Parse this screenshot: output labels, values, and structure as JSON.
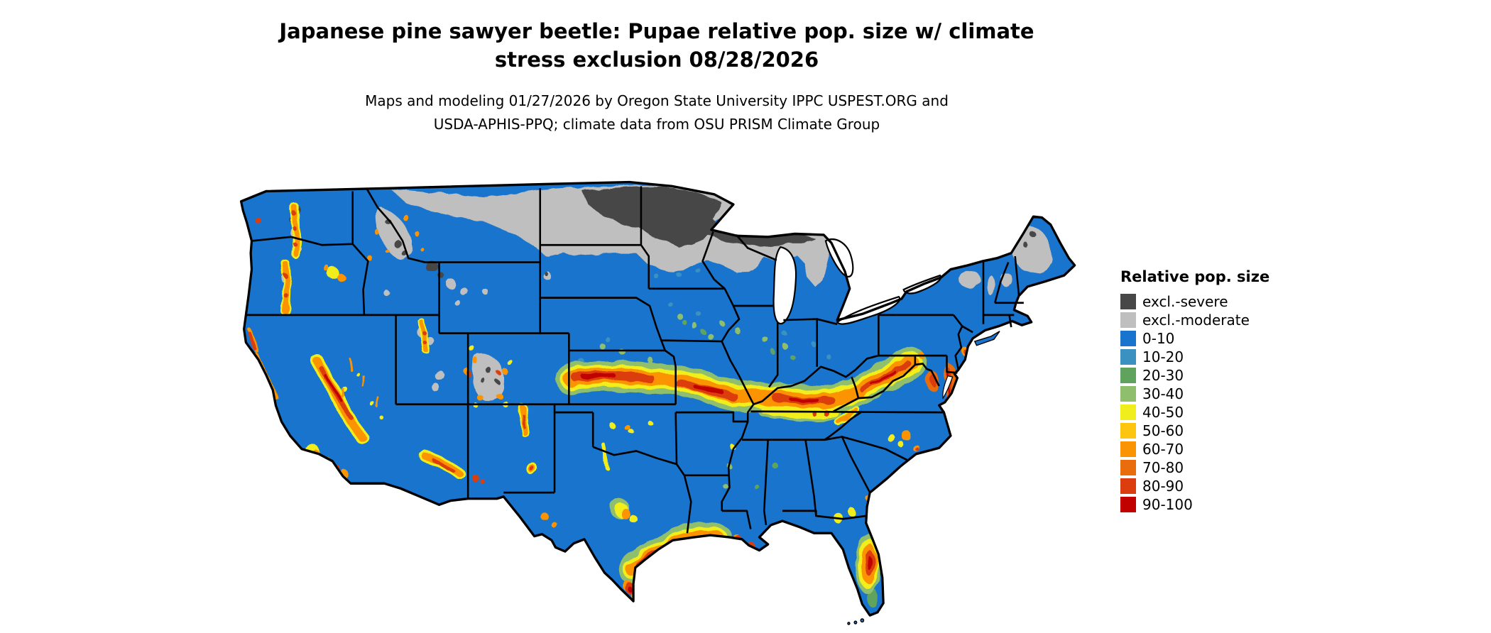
{
  "title": {
    "line1": "Japanese pine sawyer beetle: Pupae relative pop. size w/ climate",
    "line2": "stress exclusion 08/28/2026"
  },
  "subtitle": {
    "line1": "Maps and modeling 01/27/2026 by Oregon State University IPPC USPEST.ORG and",
    "line2": "USDA-APHIS-PPQ; climate data from OSU PRISM Climate Group"
  },
  "map": {
    "land_base_color": "#1874cd",
    "water_color": "#ffffff",
    "border_color": "#000000"
  },
  "legend": {
    "title": "Relative pop. size",
    "items": [
      {
        "label": "excl.-severe",
        "color": "#474747"
      },
      {
        "label": "excl.-moderate",
        "color": "#bfbfbf"
      },
      {
        "label": "0-10",
        "color": "#1874cd"
      },
      {
        "label": "10-20",
        "color": "#3b92c0"
      },
      {
        "label": "20-30",
        "color": "#5fa35f"
      },
      {
        "label": "30-40",
        "color": "#8fbe6d"
      },
      {
        "label": "40-50",
        "color": "#f1ee1e"
      },
      {
        "label": "50-60",
        "color": "#fdc50f"
      },
      {
        "label": "60-70",
        "color": "#fb9403"
      },
      {
        "label": "70-80",
        "color": "#e96d0d"
      },
      {
        "label": "80-90",
        "color": "#dc3d0f"
      },
      {
        "label": "90-100",
        "color": "#c10000"
      }
    ]
  }
}
